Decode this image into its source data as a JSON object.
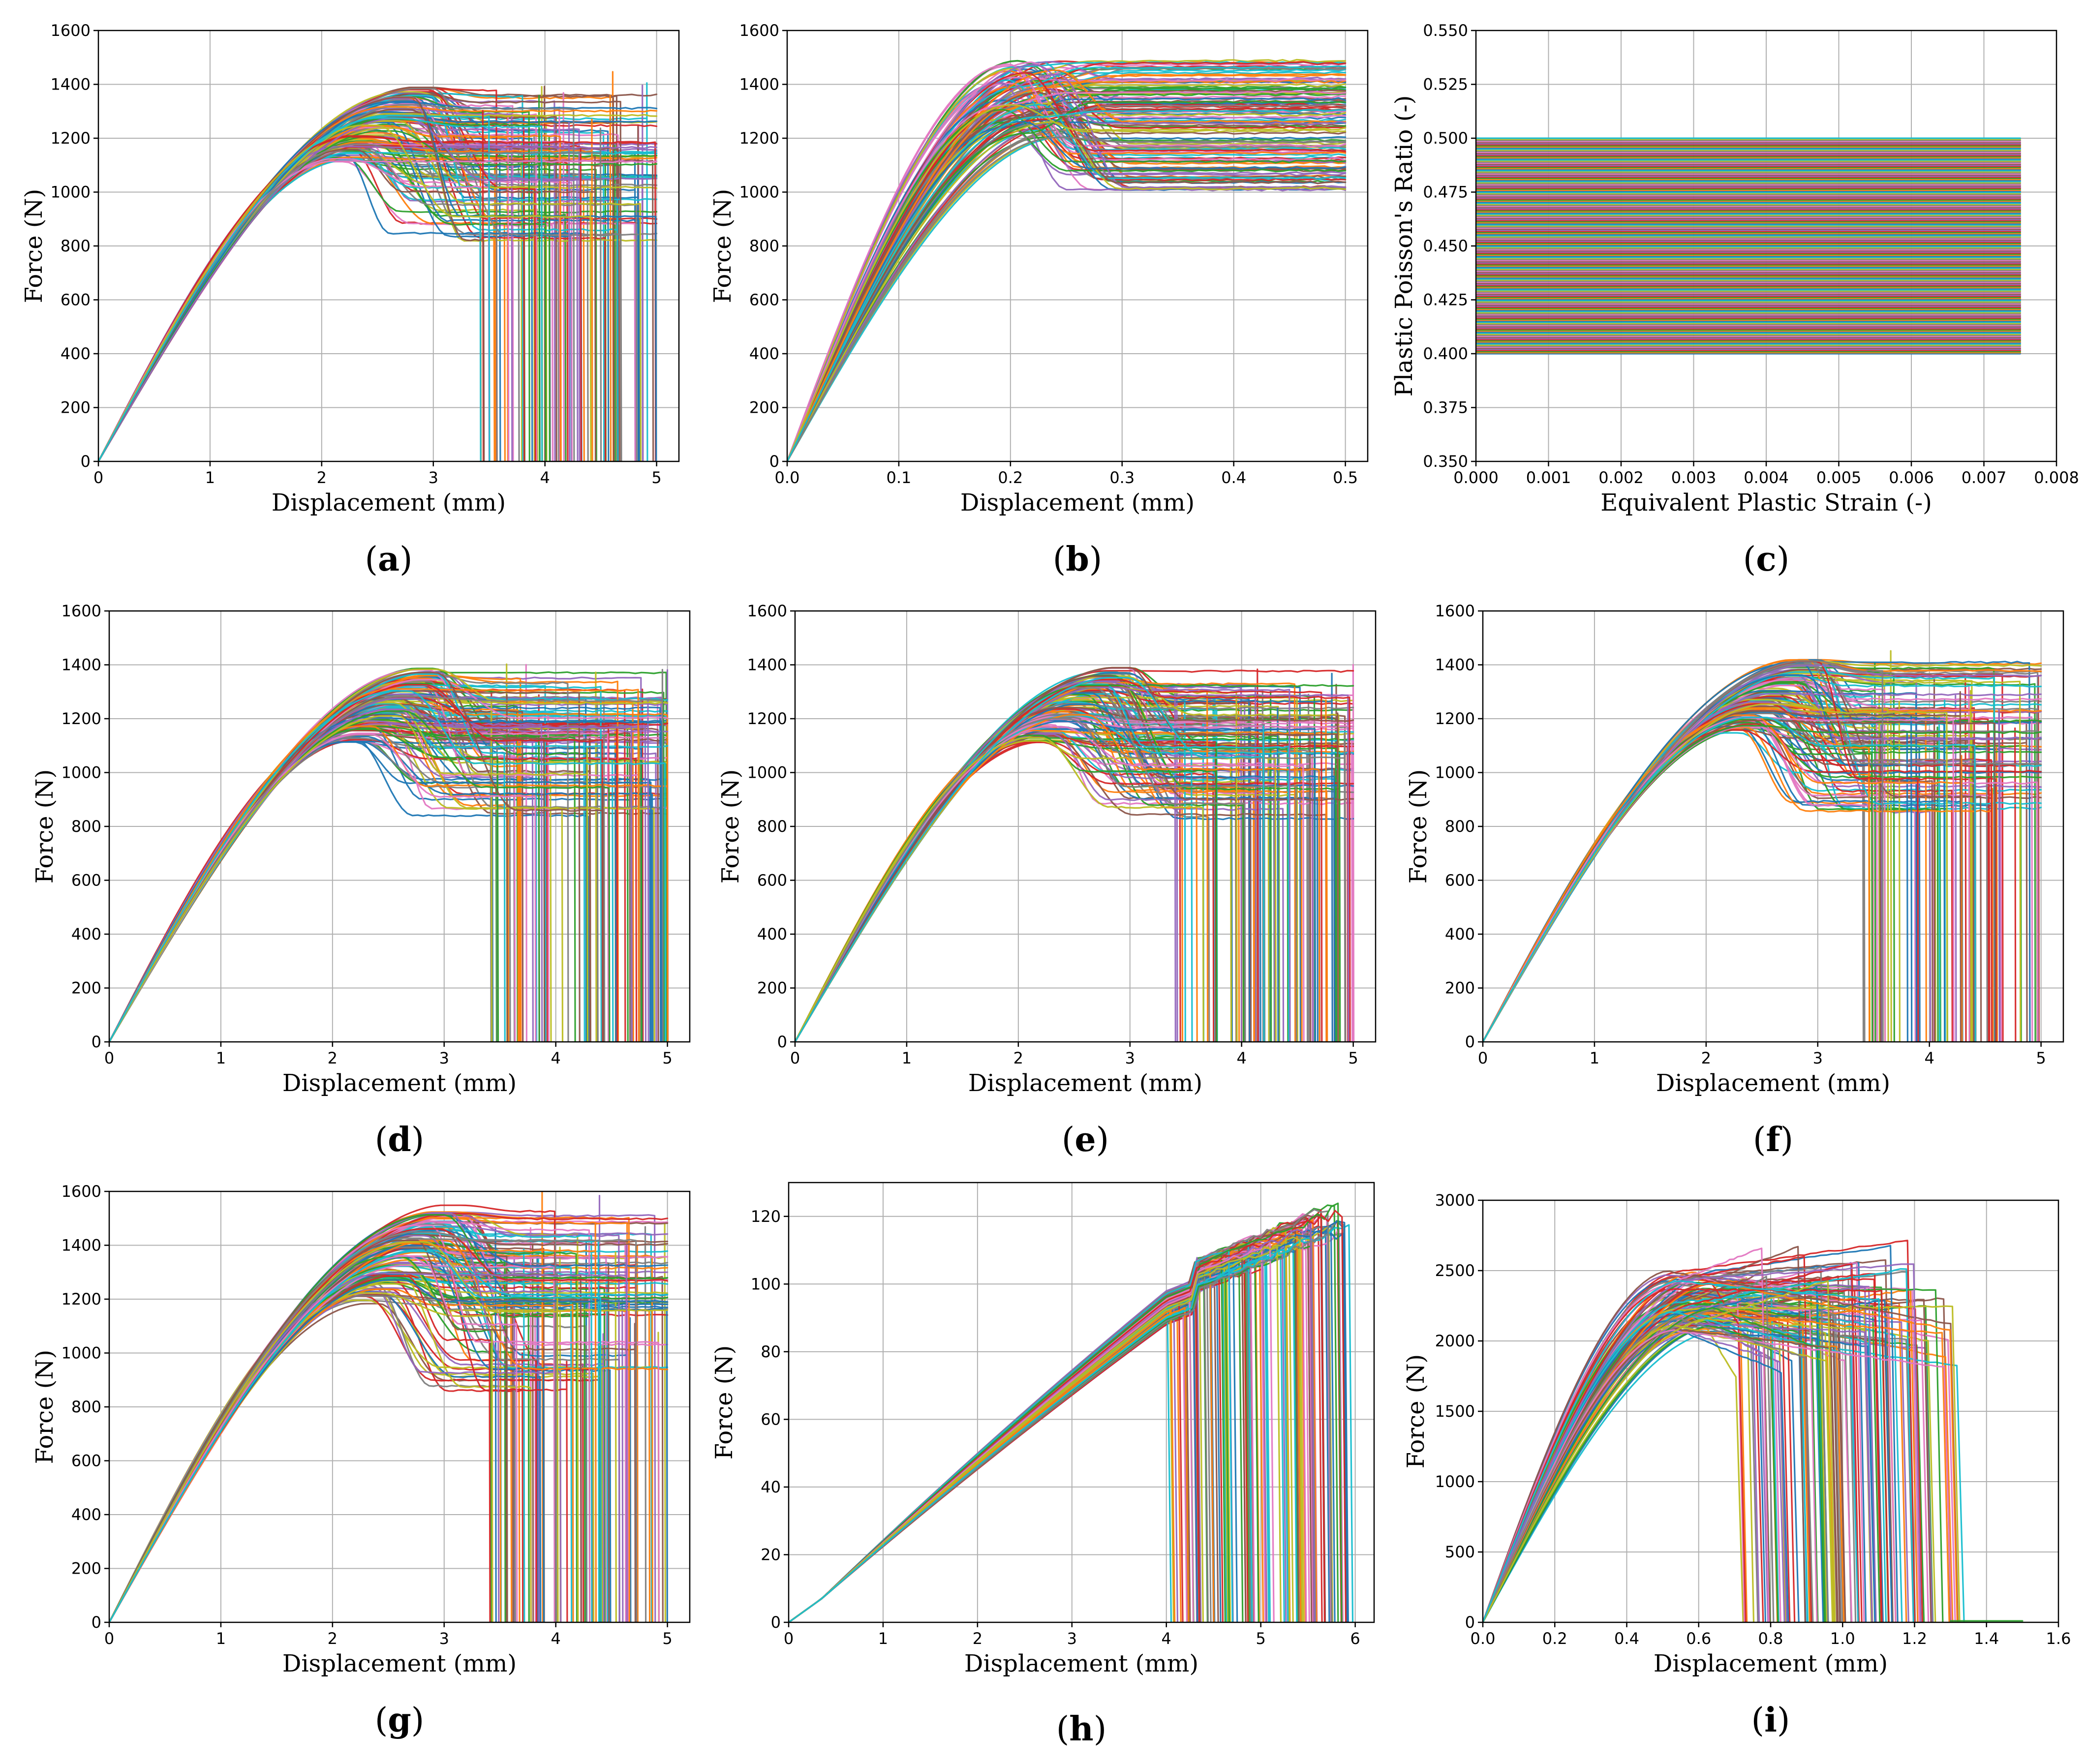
{
  "figure": {
    "colors": [
      "#1f77b4",
      "#ff7f0e",
      "#2ca02c",
      "#d62728",
      "#9467bd",
      "#8c564b",
      "#e377c2",
      "#7f7f7f",
      "#bcbd22",
      "#17becf"
    ]
  },
  "chart_data": [
    {
      "id": "a",
      "type": "line",
      "label": "a",
      "title": "",
      "xlabel": "Displacement (mm)",
      "ylabel": "Force (N)",
      "xlim": [
        0,
        5.2
      ],
      "ylim": [
        0,
        1600
      ],
      "xticks": [
        0,
        1,
        2,
        3,
        4,
        5
      ],
      "xtick_labels": [
        "0",
        "1",
        "2",
        "3",
        "4",
        "5"
      ],
      "yticks": [
        0,
        200,
        400,
        600,
        800,
        1000,
        1200,
        1400,
        1600
      ],
      "ytick_labels": [
        "0",
        "200",
        "400",
        "600",
        "800",
        "1000",
        "1200",
        "1400",
        "1600"
      ],
      "grid": true,
      "family": {
        "kind": "fracture",
        "n_curves": 130,
        "peak_force_range": [
          1110,
          1390
        ],
        "peak_disp_range": [
          2.2,
          3.0
        ],
        "plateau_force_range": [
          810,
          1390
        ],
        "final_force_range": [
          0,
          1390
        ],
        "fracture_disp_range": [
          3.4,
          5.0
        ],
        "x_max": 5.0
      }
    },
    {
      "id": "b",
      "type": "line",
      "label": "b",
      "title": "",
      "xlabel": "Displacement (mm)",
      "ylabel": "Force (N)",
      "xlim": [
        0,
        0.52
      ],
      "ylim": [
        0,
        1600
      ],
      "xticks": [
        0,
        0.1,
        0.2,
        0.3,
        0.4,
        0.5
      ],
      "xtick_labels": [
        "0.0",
        "0.1",
        "0.2",
        "0.3",
        "0.4",
        "0.5"
      ],
      "yticks": [
        0,
        200,
        400,
        600,
        800,
        1000,
        1200,
        1400,
        1600
      ],
      "ytick_labels": [
        "0",
        "200",
        "400",
        "600",
        "800",
        "1000",
        "1200",
        "1400",
        "1600"
      ],
      "grid": true,
      "family": {
        "kind": "plateau",
        "n_curves": 120,
        "peak_force_range": [
          1200,
          1490
        ],
        "peak_disp_range": [
          0.19,
          0.25
        ],
        "plateau_force_range": [
          1000,
          1540
        ],
        "x_max": 0.5
      }
    },
    {
      "id": "c",
      "type": "line",
      "label": "c",
      "title": "",
      "xlabel": "Equivalent Plastic Strain (-)",
      "ylabel": "Plastic Poisson's Ratio (-)",
      "xlim": [
        0,
        0.008
      ],
      "ylim": [
        0.35,
        0.55
      ],
      "xticks": [
        0,
        0.001,
        0.002,
        0.003,
        0.004,
        0.005,
        0.006,
        0.007,
        0.008
      ],
      "xtick_labels": [
        "0.000",
        "0.001",
        "0.002",
        "0.003",
        "0.004",
        "0.005",
        "0.006",
        "0.007",
        "0.008"
      ],
      "yticks": [
        0.35,
        0.375,
        0.4,
        0.425,
        0.45,
        0.475,
        0.5,
        0.525,
        0.55
      ],
      "ytick_labels": [
        "0.350",
        "0.375",
        "0.400",
        "0.425",
        "0.450",
        "0.475",
        "0.500",
        "0.525",
        "0.550"
      ],
      "grid": true,
      "family": {
        "kind": "flat",
        "n_curves": 200,
        "value_range": [
          0.4,
          0.5
        ],
        "x_max": 0.0075
      }
    },
    {
      "id": "d",
      "type": "line",
      "label": "d",
      "title": "",
      "xlabel": "Displacement (mm)",
      "ylabel": "Force (N)",
      "xlim": [
        0,
        5.2
      ],
      "ylim": [
        0,
        1600
      ],
      "xticks": [
        0,
        1,
        2,
        3,
        4,
        5
      ],
      "xtick_labels": [
        "0",
        "1",
        "2",
        "3",
        "4",
        "5"
      ],
      "yticks": [
        0,
        200,
        400,
        600,
        800,
        1000,
        1200,
        1400,
        1600
      ],
      "ytick_labels": [
        "0",
        "200",
        "400",
        "600",
        "800",
        "1000",
        "1200",
        "1400",
        "1600"
      ],
      "grid": true,
      "family": {
        "kind": "fracture",
        "n_curves": 130,
        "peak_force_range": [
          1110,
          1390
        ],
        "peak_disp_range": [
          2.2,
          3.0
        ],
        "plateau_force_range": [
          820,
          1390
        ],
        "final_force_range": [
          0,
          1390
        ],
        "fracture_disp_range": [
          3.4,
          5.0
        ],
        "x_max": 5.0
      }
    },
    {
      "id": "e",
      "type": "line",
      "label": "e",
      "title": "",
      "xlabel": "Displacement (mm)",
      "ylabel": "Force (N)",
      "xlim": [
        0,
        5.2
      ],
      "ylim": [
        0,
        1600
      ],
      "xticks": [
        0,
        1,
        2,
        3,
        4,
        5
      ],
      "xtick_labels": [
        "0",
        "1",
        "2",
        "3",
        "4",
        "5"
      ],
      "yticks": [
        0,
        200,
        400,
        600,
        800,
        1000,
        1200,
        1400,
        1600
      ],
      "ytick_labels": [
        "0",
        "200",
        "400",
        "600",
        "800",
        "1000",
        "1200",
        "1400",
        "1600"
      ],
      "grid": true,
      "family": {
        "kind": "fracture",
        "n_curves": 130,
        "peak_force_range": [
          1110,
          1390
        ],
        "peak_disp_range": [
          2.2,
          3.0
        ],
        "plateau_force_range": [
          820,
          1400
        ],
        "final_force_range": [
          0,
          1400
        ],
        "fracture_disp_range": [
          3.4,
          5.0
        ],
        "x_max": 5.0
      }
    },
    {
      "id": "f",
      "type": "line",
      "label": "f",
      "title": "",
      "xlabel": "Displacement (mm)",
      "ylabel": "Force (N)",
      "xlim": [
        0,
        5.2
      ],
      "ylim": [
        0,
        1600
      ],
      "xticks": [
        0,
        1,
        2,
        3,
        4,
        5
      ],
      "xtick_labels": [
        "0",
        "1",
        "2",
        "3",
        "4",
        "5"
      ],
      "yticks": [
        0,
        200,
        400,
        600,
        800,
        1000,
        1200,
        1400,
        1600
      ],
      "ytick_labels": [
        "0",
        "200",
        "400",
        "600",
        "800",
        "1000",
        "1200",
        "1400",
        "1600"
      ],
      "grid": true,
      "family": {
        "kind": "fracture",
        "n_curves": 130,
        "peak_force_range": [
          1140,
          1420
        ],
        "peak_disp_range": [
          2.3,
          3.0
        ],
        "plateau_force_range": [
          830,
          1430
        ],
        "final_force_range": [
          0,
          1430
        ],
        "fracture_disp_range": [
          3.4,
          5.0
        ],
        "x_max": 5.0
      }
    },
    {
      "id": "g",
      "type": "line",
      "label": "g",
      "title": "",
      "xlabel": "Displacement (mm)",
      "ylabel": "Force (N)",
      "xlim": [
        0,
        5.2
      ],
      "ylim": [
        0,
        1600
      ],
      "xticks": [
        0,
        1,
        2,
        3,
        4,
        5
      ],
      "xtick_labels": [
        "0",
        "1",
        "2",
        "3",
        "4",
        "5"
      ],
      "yticks": [
        0,
        200,
        400,
        600,
        800,
        1000,
        1200,
        1400,
        1600
      ],
      "ytick_labels": [
        "0",
        "200",
        "400",
        "600",
        "800",
        "1000",
        "1200",
        "1400",
        "1600"
      ],
      "grid": true,
      "family": {
        "kind": "fracture",
        "n_curves": 130,
        "peak_force_range": [
          1180,
          1550
        ],
        "peak_disp_range": [
          2.3,
          3.2
        ],
        "plateau_force_range": [
          850,
          1540
        ],
        "final_force_range": [
          0,
          1540
        ],
        "fracture_disp_range": [
          3.4,
          5.0
        ],
        "x_max": 5.0
      }
    },
    {
      "id": "h",
      "type": "line",
      "label": "h",
      "title": "",
      "xlabel": "Displacement (mm)",
      "ylabel": "Force (N)",
      "xlim": [
        0,
        6.2
      ],
      "ylim": [
        0,
        130
      ],
      "xticks": [
        0,
        1,
        2,
        3,
        4,
        5,
        6
      ],
      "xtick_labels": [
        "0",
        "1",
        "2",
        "3",
        "4",
        "5",
        "6"
      ],
      "yticks": [
        0,
        20,
        40,
        60,
        80,
        100,
        120
      ],
      "ytick_labels": [
        "0",
        "20",
        "40",
        "60",
        "80",
        "100",
        "120"
      ],
      "grid": true,
      "family": {
        "kind": "rising",
        "n_curves": 120,
        "force_at_4mm_range": [
          88,
          98
        ],
        "peak_force_range": [
          88,
          121
        ],
        "fracture_disp_range": [
          3.9,
          5.95
        ]
      }
    },
    {
      "id": "i",
      "type": "line",
      "label": "i",
      "title": "",
      "xlabel": "Displacement (mm)",
      "ylabel": "Force (N)",
      "xlim": [
        0,
        1.6
      ],
      "ylim": [
        0,
        3000
      ],
      "xticks": [
        0,
        0.2,
        0.4,
        0.6,
        0.8,
        1.0,
        1.2,
        1.4,
        1.6
      ],
      "xtick_labels": [
        "0.0",
        "0.2",
        "0.4",
        "0.6",
        "0.8",
        "1.0",
        "1.2",
        "1.4",
        "1.6"
      ],
      "yticks": [
        0,
        500,
        1000,
        1500,
        2000,
        2500,
        3000
      ],
      "ytick_labels": [
        "0",
        "500",
        "1000",
        "1500",
        "2000",
        "2500",
        "3000"
      ],
      "grid": true,
      "family": {
        "kind": "hump",
        "n_curves": 120,
        "peak_force_range": [
          2050,
          2500
        ],
        "peak_disp_range": [
          0.5,
          0.65
        ],
        "final_force_range": [
          1700,
          2730
        ],
        "fracture_disp_range": [
          0.7,
          1.32
        ],
        "tail_disp": 1.5
      }
    }
  ]
}
